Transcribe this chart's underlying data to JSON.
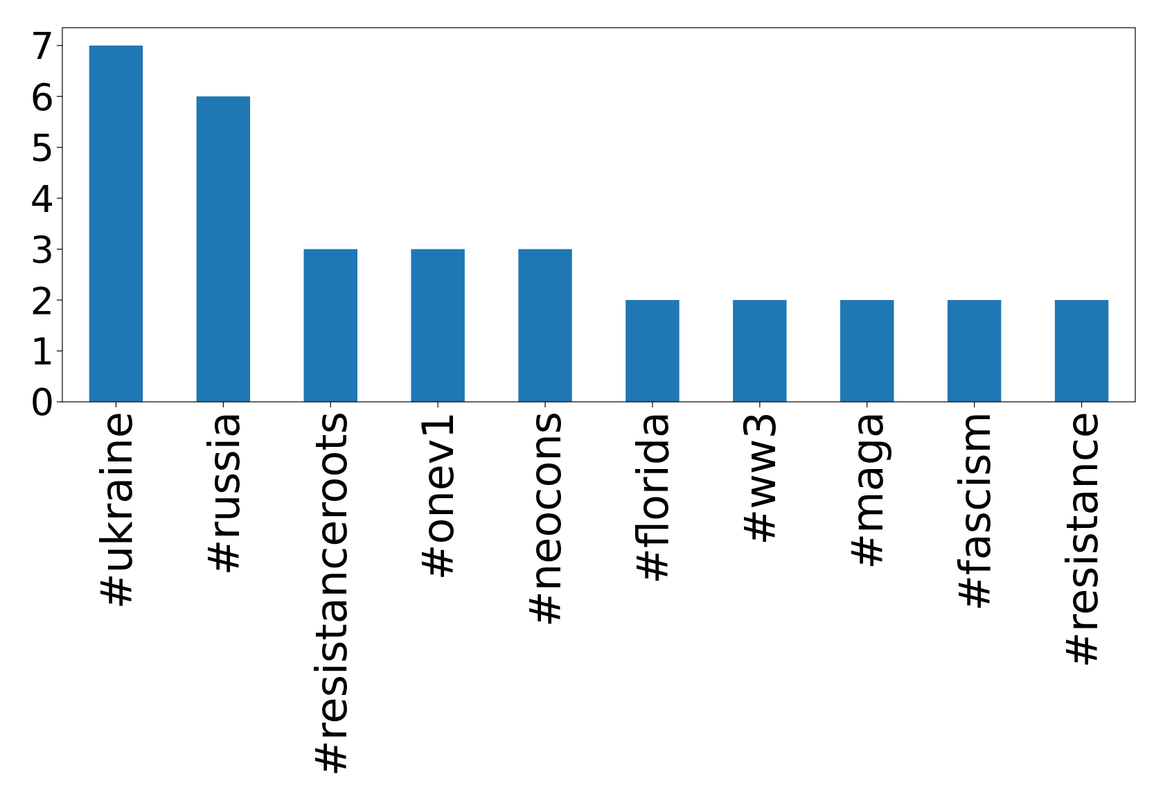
{
  "chart_data": {
    "type": "bar",
    "categories": [
      "#ukraine",
      "#russia",
      "#resistanceroots",
      "#onev1",
      "#neocons",
      "#florida",
      "#ww3",
      "#maga",
      "#fascism",
      "#resistance"
    ],
    "values": [
      7,
      6,
      3,
      3,
      3,
      2,
      2,
      2,
      2,
      2
    ],
    "color": "#1f77b4",
    "ylim": [
      0,
      7.35
    ],
    "yticks": [
      0,
      1,
      2,
      3,
      4,
      5,
      6,
      7
    ],
    "grid": false
  }
}
